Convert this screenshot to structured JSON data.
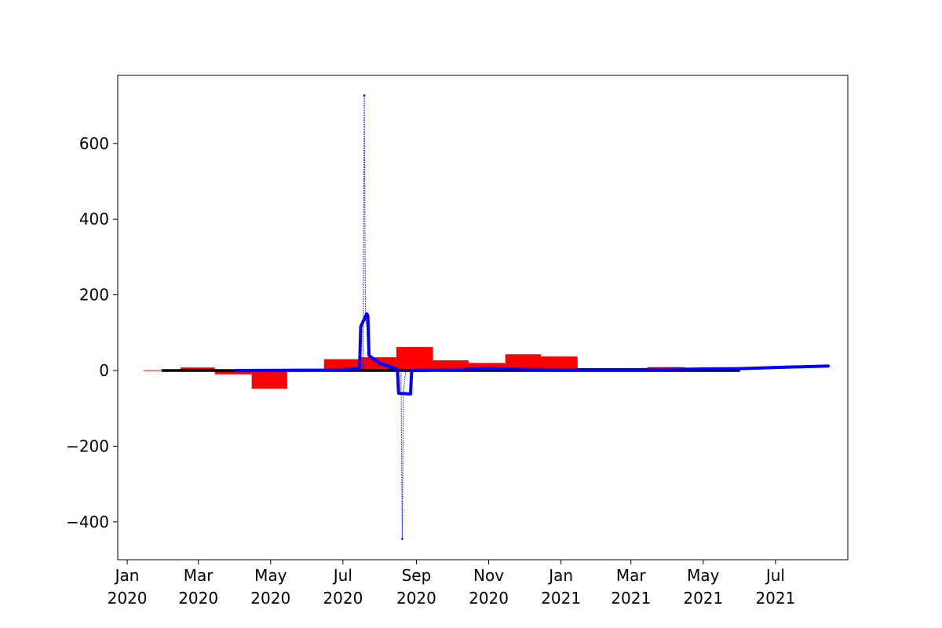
{
  "chart_data": {
    "type": "bar",
    "title": "",
    "xlabel": "",
    "ylabel": "",
    "xlim": [
      "2019-12-24",
      "2021-08-31"
    ],
    "ylim": [
      -500,
      780
    ],
    "grid": false,
    "colors": {
      "bars": "#ff0000",
      "black_line": "#000000",
      "blue_line": "#0000ff",
      "axes": "#000000"
    },
    "y_ticks": [
      {
        "value": -400,
        "label": "−400"
      },
      {
        "value": -200,
        "label": "−200"
      },
      {
        "value": 0,
        "label": "0"
      },
      {
        "value": 200,
        "label": "200"
      },
      {
        "value": 400,
        "label": "400"
      },
      {
        "value": 600,
        "label": "600"
      }
    ],
    "x_ticks": [
      {
        "date": "2020-01-01",
        "label": [
          "Jan",
          "2020"
        ]
      },
      {
        "date": "2020-03-01",
        "label": [
          "Mar",
          "2020"
        ]
      },
      {
        "date": "2020-05-01",
        "label": [
          "May",
          "2020"
        ]
      },
      {
        "date": "2020-07-01",
        "label": [
          "Jul",
          "2020"
        ]
      },
      {
        "date": "2020-09-01",
        "label": [
          "Sep",
          "2020"
        ]
      },
      {
        "date": "2020-11-01",
        "label": [
          "Nov",
          "2020"
        ]
      },
      {
        "date": "2021-01-01",
        "label": [
          "Jan",
          "2021"
        ]
      },
      {
        "date": "2021-03-01",
        "label": [
          "Mar",
          "2021"
        ]
      },
      {
        "date": "2021-05-01",
        "label": [
          "May",
          "2021"
        ]
      },
      {
        "date": "2021-07-01",
        "label": [
          "Jul",
          "2021"
        ]
      }
    ],
    "bars": [
      {
        "start": "2020-01-15",
        "end": "2020-01-31",
        "value": 1
      },
      {
        "start": "2020-02-15",
        "end": "2020-03-15",
        "value": 8
      },
      {
        "start": "2020-03-15",
        "end": "2020-04-15",
        "value": -10
      },
      {
        "start": "2020-04-15",
        "end": "2020-05-15",
        "value": -48
      },
      {
        "start": "2020-06-15",
        "end": "2020-07-15",
        "value": 30
      },
      {
        "start": "2020-07-15",
        "end": "2020-08-15",
        "value": 35
      },
      {
        "start": "2020-08-15",
        "end": "2020-09-15",
        "value": 62
      },
      {
        "start": "2020-09-15",
        "end": "2020-10-15",
        "value": 27
      },
      {
        "start": "2020-10-15",
        "end": "2020-11-15",
        "value": 20
      },
      {
        "start": "2020-11-15",
        "end": "2020-12-15",
        "value": 43
      },
      {
        "start": "2020-12-15",
        "end": "2021-01-15",
        "value": 37
      },
      {
        "start": "2021-03-15",
        "end": "2021-04-15",
        "value": 9
      },
      {
        "start": "2021-04-15",
        "end": "2021-05-15",
        "value": 4
      }
    ],
    "series": [
      {
        "style": "dotted-thin",
        "x": [
          "2020-04-01",
          "2020-06-20",
          "2020-07-05",
          "2020-07-15",
          "2020-07-18",
          "2020-07-19",
          "2020-07-20",
          "2020-07-22",
          "2020-07-23",
          "2020-07-25",
          "2020-08-01",
          "2020-08-10",
          "2020-08-15",
          "2020-08-19",
          "2020-08-20",
          "2020-08-21",
          "2020-08-23",
          "2020-09-01",
          "2020-10-01",
          "2020-11-01",
          "2021-01-01",
          "2021-03-01",
          "2021-05-01",
          "2021-07-01",
          "2021-08-15"
        ],
        "y": [
          0,
          2,
          5,
          6,
          10,
          727,
          140,
          100,
          40,
          30,
          15,
          5,
          3,
          1,
          -445,
          -60,
          0,
          0,
          2,
          3,
          2,
          3,
          5,
          8,
          12
        ]
      },
      {
        "style": "thick",
        "x": [
          "2020-04-01",
          "2020-06-20",
          "2020-07-05",
          "2020-07-15",
          "2020-07-16",
          "2020-07-18",
          "2020-07-19",
          "2020-07-21",
          "2020-07-22",
          "2020-07-23",
          "2020-07-25",
          "2020-08-01",
          "2020-08-10",
          "2020-08-15",
          "2020-08-16",
          "2020-08-17",
          "2020-08-27",
          "2020-08-28",
          "2020-08-30",
          "2020-10-01",
          "2020-11-01",
          "2020-12-01",
          "2021-01-01",
          "2021-03-01",
          "2021-05-01",
          "2021-06-01",
          "2021-07-01",
          "2021-08-15"
        ],
        "y": [
          0,
          1,
          3,
          5,
          115,
          130,
          135,
          150,
          145,
          40,
          35,
          20,
          10,
          5,
          0,
          -60,
          -62,
          0,
          0,
          2,
          5,
          3,
          2,
          2,
          4,
          5,
          8,
          12
        ]
      },
      {
        "style": "black-thick",
        "x": [
          "2020-01-30",
          "2021-06-01"
        ],
        "y": [
          0,
          0
        ]
      }
    ]
  }
}
